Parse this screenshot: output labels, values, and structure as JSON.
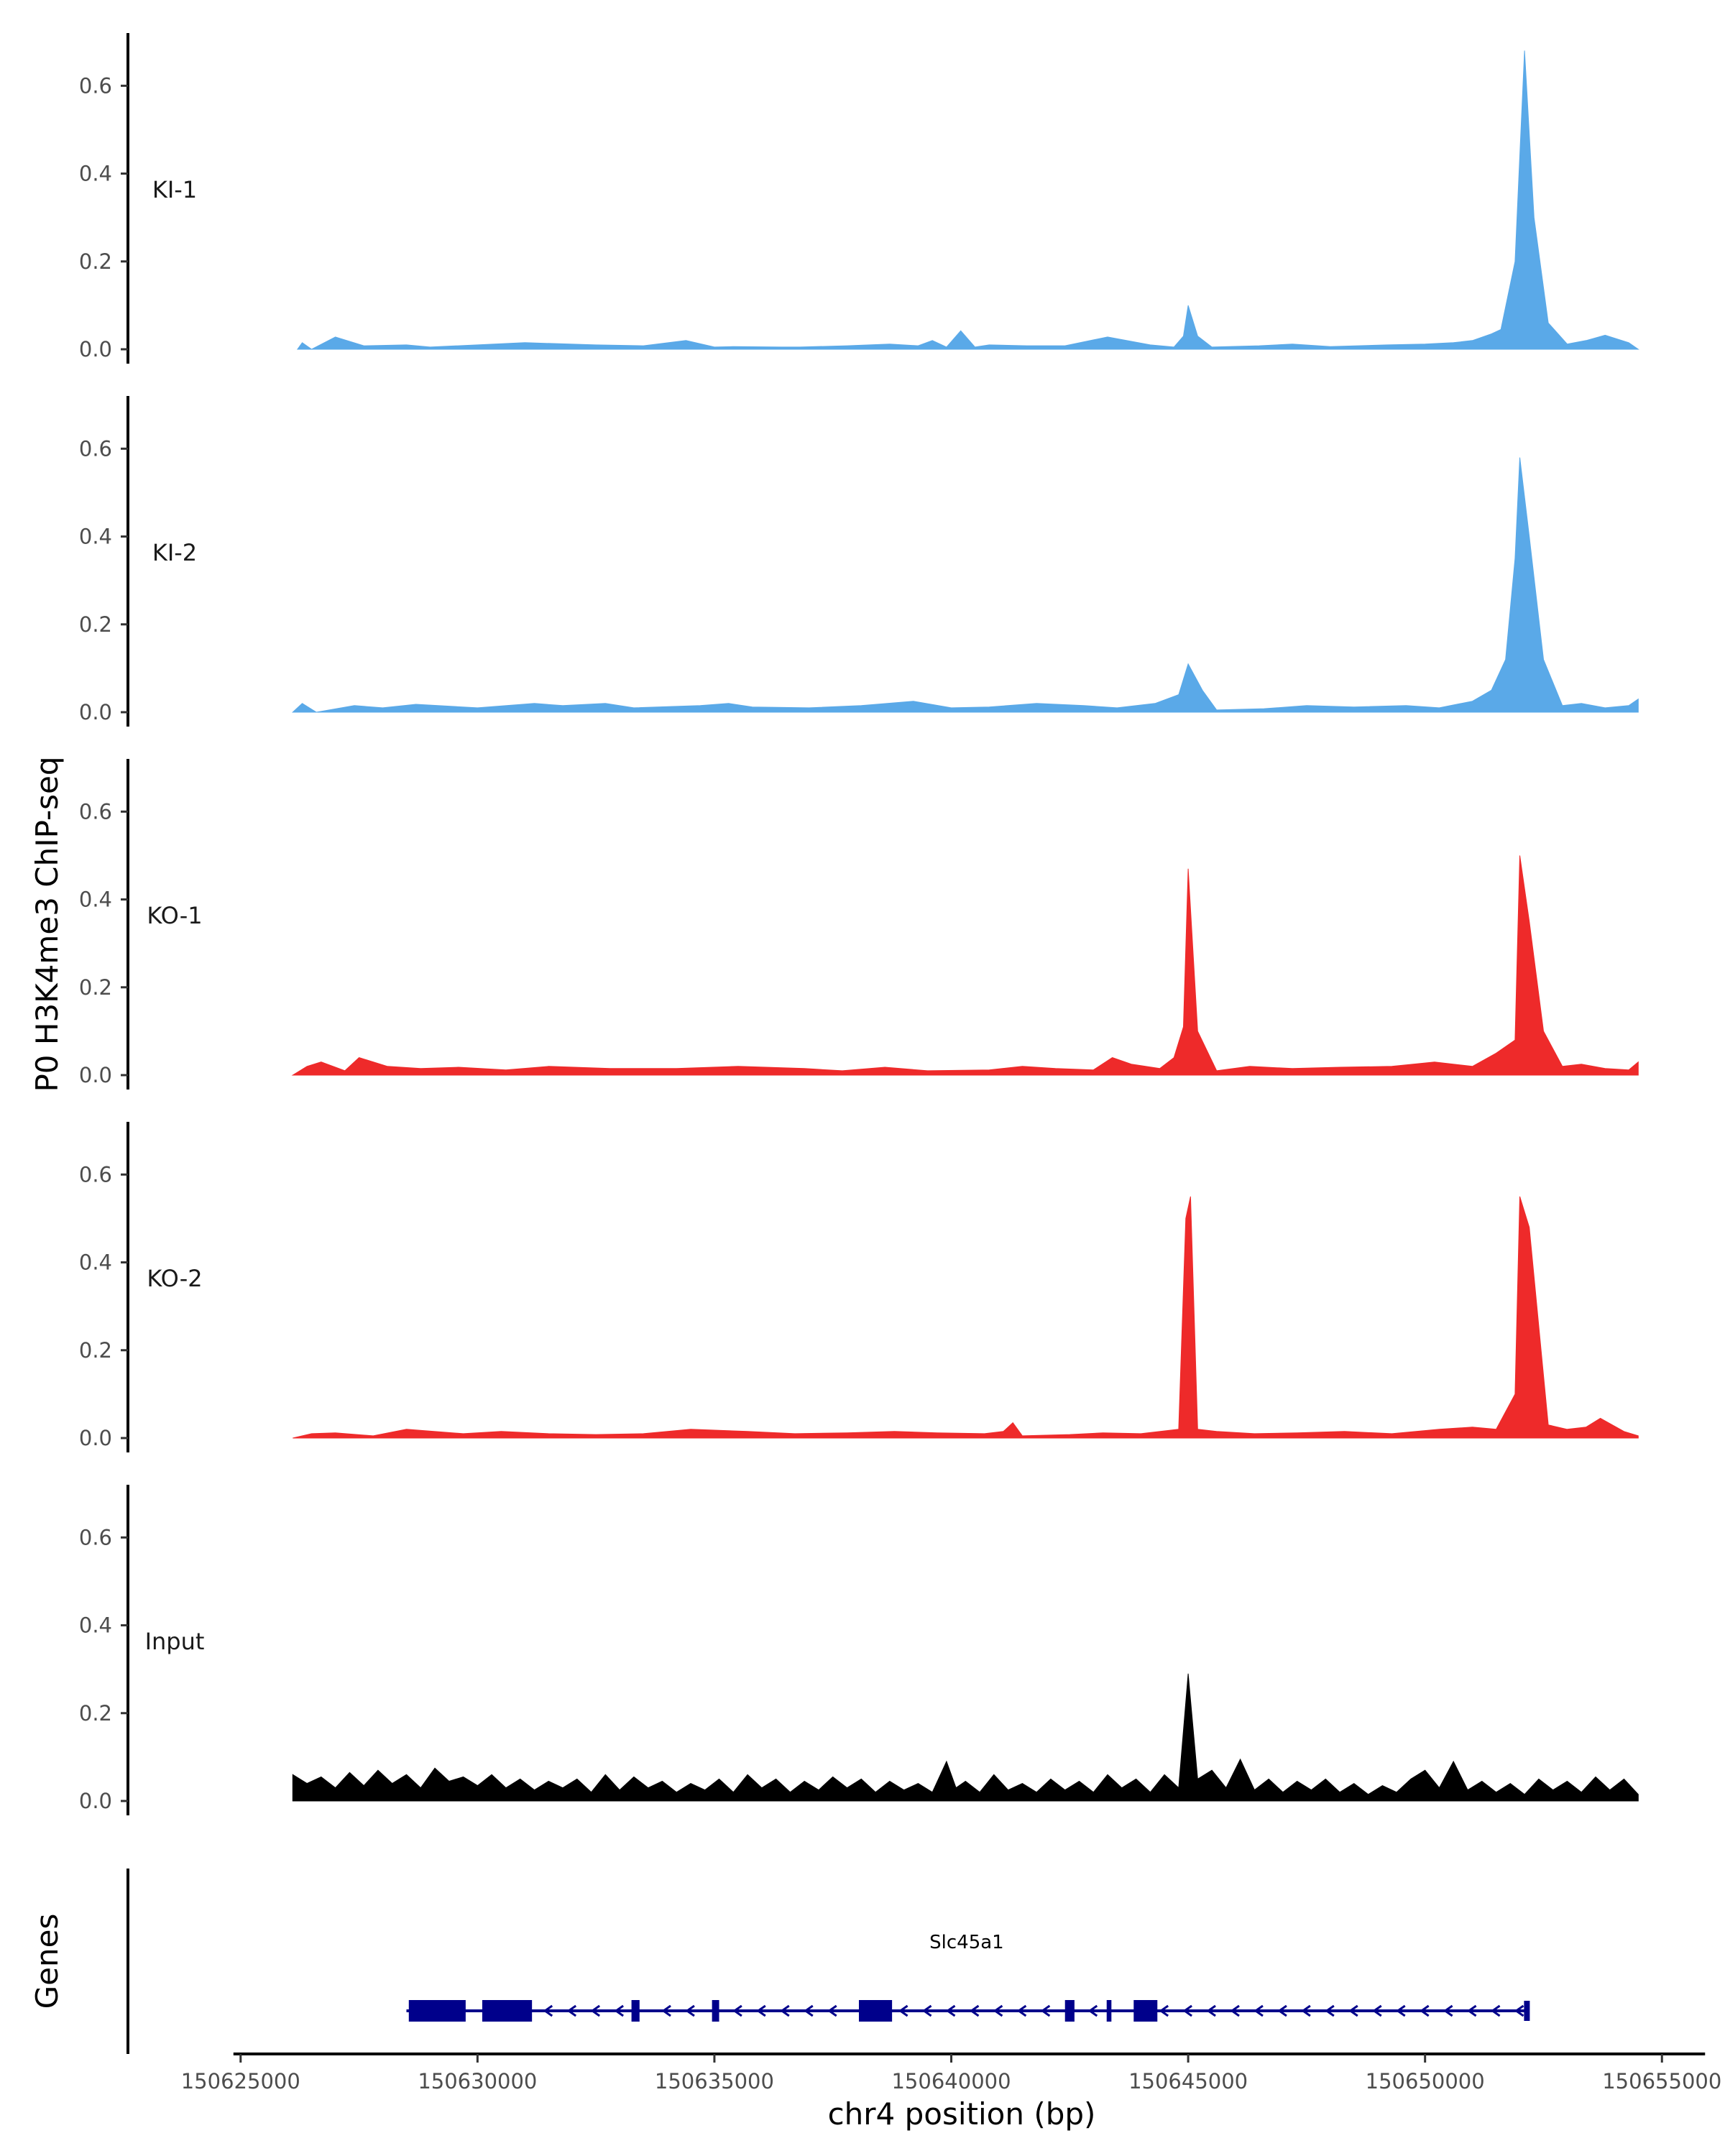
{
  "chart_data": {
    "type": "area",
    "ylabel": "P0 H3K4me3 ChIP-seq",
    "xlabel": "chr4 position (bp)",
    "ylim": [
      0,
      0.72
    ],
    "y_ticks": [
      0.0,
      0.2,
      0.4,
      0.6
    ],
    "y_tick_labels": [
      "0.0",
      "0.2",
      "0.4",
      "0.6"
    ],
    "xlim": [
      150624700,
      150655800
    ],
    "x_ticks": [
      150625000,
      150630000,
      150635000,
      150640000,
      150645000,
      150650000,
      150655000
    ],
    "x_tick_labels": [
      "150625000",
      "150630000",
      "150635000",
      "150640000",
      "150645000",
      "150650000",
      "150655000"
    ],
    "grid": false,
    "colors": {
      "KI": "#5aa9e8",
      "KO": "#ee2a2a",
      "Input": "#000000",
      "gene": "#00008b"
    },
    "series": [
      {
        "name": "KI-1",
        "color": "#5aa9e8",
        "x": [
          150626200,
          150626300,
          150626500,
          150627000,
          150627600,
          150628500,
          150629000,
          150631000,
          150632500,
          150633500,
          150634400,
          150635000,
          150635400,
          150636400,
          150636800,
          150637800,
          150638700,
          150639300,
          150639600,
          150639900,
          150640200,
          150640500,
          150640800,
          150641600,
          150642400,
          150643300,
          150644200,
          150644700,
          150644900,
          150645000,
          150645200,
          150645500,
          150646500,
          150647200,
          150648000,
          150649200,
          150650000,
          150650600,
          150651000,
          150651400,
          150651600,
          150651900,
          150652100,
          150652300,
          150652600,
          150653000,
          150653400,
          150653800,
          150654300,
          150654500
        ],
        "y": [
          0,
          0.015,
          0,
          0.028,
          0.008,
          0.01,
          0.005,
          0.015,
          0.01,
          0.008,
          0.02,
          0.005,
          0.006,
          0.005,
          0.005,
          0.008,
          0.012,
          0.008,
          0.02,
          0.005,
          0.042,
          0.005,
          0.01,
          0.008,
          0.008,
          0.028,
          0.01,
          0.005,
          0.03,
          0.1,
          0.03,
          0.005,
          0.008,
          0.012,
          0.006,
          0.01,
          0.012,
          0.015,
          0.02,
          0.035,
          0.045,
          0.2,
          0.68,
          0.3,
          0.06,
          0.012,
          0.02,
          0.032,
          0.015,
          0
        ]
      },
      {
        "name": "KI-2",
        "color": "#5aa9e8",
        "x": [
          150626100,
          150626300,
          150626600,
          150627400,
          150628000,
          150628700,
          150630000,
          150631200,
          150631800,
          150632700,
          150633300,
          150634700,
          150635300,
          150635800,
          150637000,
          150638100,
          150639200,
          150640000,
          150640800,
          150641800,
          150642800,
          150643500,
          150644300,
          150644800,
          150645000,
          150645300,
          150645600,
          150646600,
          150647500,
          150648500,
          150649600,
          150650300,
          150651000,
          150651400,
          150651700,
          150651900,
          150652000,
          150652200,
          150652500,
          150652900,
          150653300,
          150653800,
          150654300,
          150654500
        ],
        "y": [
          0,
          0.02,
          0,
          0.015,
          0.01,
          0.018,
          0.01,
          0.02,
          0.015,
          0.02,
          0.01,
          0.015,
          0.02,
          0.012,
          0.01,
          0.015,
          0.025,
          0.01,
          0.012,
          0.02,
          0.015,
          0.01,
          0.02,
          0.04,
          0.11,
          0.05,
          0.005,
          0.008,
          0.015,
          0.012,
          0.015,
          0.01,
          0.025,
          0.05,
          0.12,
          0.35,
          0.58,
          0.4,
          0.12,
          0.015,
          0.02,
          0.01,
          0.015,
          0.03
        ]
      },
      {
        "name": "KO-1",
        "color": "#ee2a2a",
        "x": [
          150626100,
          150626400,
          150626700,
          150627200,
          150627500,
          150628100,
          150628800,
          150629600,
          150630600,
          150631500,
          150632800,
          150634200,
          150635500,
          150636900,
          150637700,
          150638600,
          150639500,
          150640800,
          150641500,
          150642200,
          150643000,
          150643400,
          150643800,
          150644400,
          150644700,
          150644900,
          150645000,
          150645200,
          150645600,
          150646300,
          150647200,
          150648200,
          150649300,
          150650200,
          150651000,
          150651500,
          150651900,
          150652000,
          150652200,
          150652500,
          150652900,
          150653300,
          150653800,
          150654300,
          150654500
        ],
        "y": [
          0,
          0.02,
          0.03,
          0.01,
          0.04,
          0.02,
          0.015,
          0.018,
          0.012,
          0.02,
          0.015,
          0.015,
          0.02,
          0.015,
          0.01,
          0.018,
          0.01,
          0.012,
          0.02,
          0.015,
          0.012,
          0.04,
          0.025,
          0.015,
          0.04,
          0.11,
          0.47,
          0.1,
          0.01,
          0.02,
          0.015,
          0.018,
          0.02,
          0.03,
          0.02,
          0.05,
          0.08,
          0.5,
          0.35,
          0.1,
          0.02,
          0.025,
          0.015,
          0.012,
          0.03
        ]
      },
      {
        "name": "KO-2",
        "color": "#ee2a2a",
        "x": [
          150626100,
          150626500,
          150627000,
          150627800,
          150628500,
          150629700,
          150630500,
          150631500,
          150632500,
          150633500,
          150634500,
          150635700,
          150636700,
          150637800,
          150638800,
          150639700,
          150640700,
          150641100,
          150641300,
          150641500,
          150642500,
          150643200,
          150644000,
          150644800,
          150644950,
          150645050,
          150645200,
          150645600,
          150646400,
          150647300,
          150648300,
          150649300,
          150650300,
          150651000,
          150651500,
          150651900,
          150652000,
          150652200,
          150652600,
          150653000,
          150653400,
          150653700,
          150654200,
          150654500
        ],
        "y": [
          0,
          0.01,
          0.012,
          0.005,
          0.02,
          0.01,
          0.015,
          0.01,
          0.008,
          0.01,
          0.02,
          0.015,
          0.01,
          0.012,
          0.015,
          0.012,
          0.01,
          0.015,
          0.035,
          0.005,
          0.008,
          0.012,
          0.01,
          0.02,
          0.5,
          0.55,
          0.02,
          0.015,
          0.01,
          0.012,
          0.015,
          0.01,
          0.02,
          0.025,
          0.02,
          0.1,
          0.55,
          0.48,
          0.03,
          0.02,
          0.025,
          0.045,
          0.015,
          0.005
        ]
      },
      {
        "name": "Input",
        "color": "#000000",
        "x": [
          150626100,
          150626400,
          150626700,
          150627000,
          150627300,
          150627600,
          150627900,
          150628200,
          150628500,
          150628800,
          150629100,
          150629400,
          150629700,
          150630000,
          150630300,
          150630600,
          150630900,
          150631200,
          150631500,
          150631800,
          150632100,
          150632400,
          150632700,
          150633000,
          150633300,
          150633600,
          150633900,
          150634200,
          150634500,
          150634800,
          150635100,
          150635400,
          150635700,
          150636000,
          150636300,
          150636600,
          150636900,
          150637200,
          150637500,
          150637800,
          150638100,
          150638400,
          150638700,
          150639000,
          150639300,
          150639600,
          150639900,
          150640100,
          150640300,
          150640600,
          150640900,
          150641200,
          150641500,
          150641800,
          150642100,
          150642400,
          150642700,
          150643000,
          150643300,
          150643600,
          150643900,
          150644200,
          150644500,
          150644800,
          150645000,
          150645200,
          150645500,
          150645800,
          150646100,
          150646400,
          150646700,
          150647000,
          150647300,
          150647600,
          150647900,
          150648200,
          150648500,
          150648800,
          150649100,
          150649400,
          150649700,
          150650000,
          150650300,
          150650600,
          150650900,
          150651200,
          150651500,
          150651800,
          150652100,
          150652400,
          150652700,
          150653000,
          150653300,
          150653600,
          150653900,
          150654200,
          150654500
        ],
        "y": [
          0.06,
          0.04,
          0.055,
          0.03,
          0.065,
          0.035,
          0.07,
          0.04,
          0.06,
          0.03,
          0.075,
          0.045,
          0.055,
          0.035,
          0.06,
          0.03,
          0.05,
          0.025,
          0.045,
          0.03,
          0.05,
          0.02,
          0.06,
          0.025,
          0.055,
          0.03,
          0.045,
          0.02,
          0.04,
          0.025,
          0.05,
          0.02,
          0.06,
          0.03,
          0.05,
          0.02,
          0.045,
          0.025,
          0.055,
          0.03,
          0.05,
          0.02,
          0.045,
          0.025,
          0.04,
          0.02,
          0.09,
          0.03,
          0.045,
          0.02,
          0.06,
          0.025,
          0.04,
          0.02,
          0.05,
          0.025,
          0.045,
          0.02,
          0.06,
          0.03,
          0.05,
          0.02,
          0.06,
          0.03,
          0.29,
          0.05,
          0.07,
          0.03,
          0.095,
          0.025,
          0.05,
          0.02,
          0.045,
          0.025,
          0.05,
          0.02,
          0.04,
          0.015,
          0.035,
          0.02,
          0.05,
          0.07,
          0.03,
          0.09,
          0.025,
          0.045,
          0.02,
          0.04,
          0.015,
          0.05,
          0.025,
          0.045,
          0.02,
          0.055,
          0.025,
          0.05,
          0.015
        ]
      }
    ],
    "gene_track": {
      "label": "Genes",
      "gene_name": "Slc45a1",
      "strand": "-",
      "start": 150628500,
      "end": 150652150,
      "exons": [
        [
          150628550,
          150629750
        ],
        [
          150630100,
          150631150
        ],
        [
          150633250,
          150633420
        ],
        [
          150634950,
          150635100
        ],
        [
          150638050,
          150638750
        ],
        [
          150642400,
          150642600
        ],
        [
          150643280,
          150643380
        ],
        [
          150643850,
          150644350
        ]
      ]
    }
  }
}
